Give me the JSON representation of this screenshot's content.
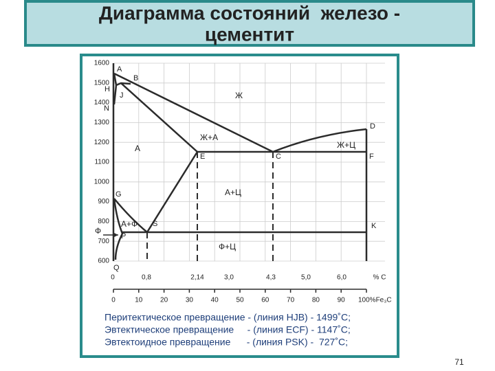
{
  "title_lines": [
    "Диаграмма состояний  железо -",
    "цементит"
  ],
  "page_number": "71",
  "diagram": {
    "temperature_ticks": [
      "1600",
      "1500",
      "1400",
      "1300",
      "1200",
      "1100",
      "1000",
      "900",
      "800",
      "700",
      "600"
    ],
    "carbon_ticks": [
      "0",
      "0,8",
      "2,14",
      "3,0",
      "4,3",
      "5,0",
      "6,0",
      "% C"
    ],
    "cementite_ticks": [
      "0",
      "10",
      "20",
      "30",
      "40",
      "50",
      "60",
      "70",
      "80",
      "90",
      "100%Fe₃C"
    ],
    "points": [
      "A",
      "B",
      "H",
      "J",
      "N",
      "D",
      "E",
      "C",
      "F",
      "G",
      "S",
      "P",
      "K",
      "Q"
    ],
    "regions": [
      "Ж",
      "Ж+А",
      "Ж+Ц",
      "А",
      "А+Ц",
      "А+Ф",
      "Ф",
      "Ф+Ц"
    ],
    "notes": [
      "Перитектическое превращение - (линия HJB) - 1499˚С;",
      "Эвтектическое превращение     - (линия ECF) - 1147˚С;",
      "Эвтектоидное превращение      - (линия PSK) -  727˚С;"
    ]
  }
}
